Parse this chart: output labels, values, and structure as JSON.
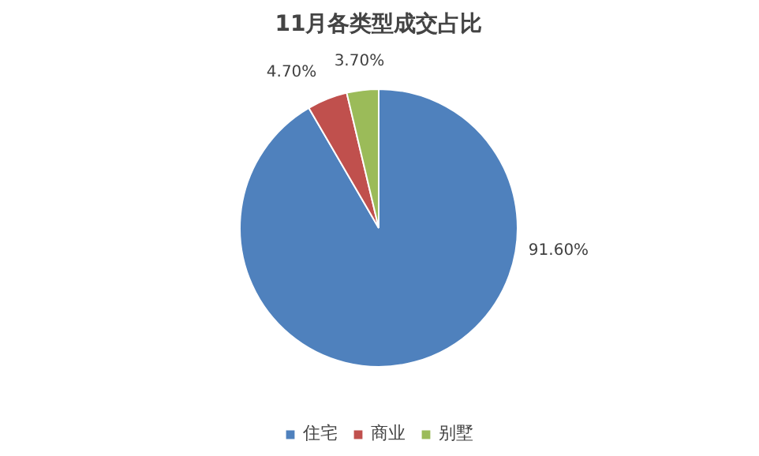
{
  "chart_data": {
    "type": "pie",
    "title": "11月各类型成交占比",
    "categories": [
      "住宅",
      "商业",
      "别墅"
    ],
    "values": [
      91.6,
      4.7,
      3.7
    ],
    "value_labels": [
      "91.60%",
      "4.70%",
      "3.70%"
    ],
    "colors": [
      "#4f81bd",
      "#c0504d",
      "#9bbb59"
    ],
    "legend": "bottom"
  }
}
